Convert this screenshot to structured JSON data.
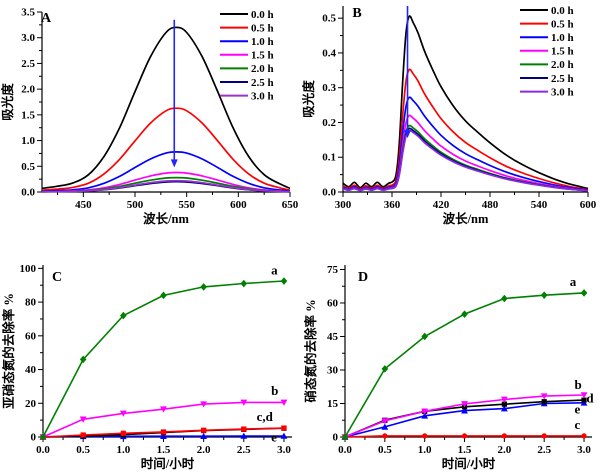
{
  "figure": {
    "background": "#ffffff"
  },
  "chart_data": [
    {
      "id": "A",
      "type": "line",
      "panel_label": "A",
      "xlabel": "波长/nm",
      "ylabel": "吸光度",
      "xlim": [
        410,
        650
      ],
      "ylim": [
        0,
        3.5
      ],
      "xticks": {
        "values": [
          450,
          500,
          550,
          600,
          650
        ],
        "labels": [
          "450",
          "500",
          "550",
          "600",
          "650"
        ],
        "minor_step": 25
      },
      "yticks": {
        "values": [
          0,
          0.5,
          1,
          1.5,
          2,
          2.5,
          3,
          3.5
        ],
        "labels": [
          "0.0",
          "0.5",
          "1.0",
          "1.5",
          "2.0",
          "2.5",
          "3.0",
          "3.5"
        ],
        "minor_step": 0.25
      },
      "legend": {
        "position": "top-right",
        "entries": [
          {
            "label": "0.0 h",
            "color": "#000000"
          },
          {
            "label": "0.5 h",
            "color": "#ff0000"
          },
          {
            "label": "1.0 h",
            "color": "#0000ff"
          },
          {
            "label": "1.5 h",
            "color": "#ff00ff"
          },
          {
            "label": "2.0 h",
            "color": "#008000"
          },
          {
            "label": "2.5 h",
            "color": "#000080"
          },
          {
            "label": "3.0 h",
            "color": "#9933cc"
          }
        ]
      },
      "profile": {
        "x": [
          410,
          425,
          440,
          455,
          470,
          485,
          500,
          515,
          530,
          540,
          550,
          565,
          580,
          595,
          610,
          625,
          640,
          650
        ],
        "y_normalized": [
          0.022,
          0.035,
          0.055,
          0.105,
          0.216,
          0.389,
          0.61,
          0.822,
          0.969,
          1.0,
          0.969,
          0.822,
          0.61,
          0.389,
          0.216,
          0.105,
          0.05,
          0.022
        ]
      },
      "series": [
        {
          "name": "0.0 h",
          "color": "#000000",
          "peak": 3.2
        },
        {
          "name": "0.5 h",
          "color": "#ff0000",
          "peak": 1.63
        },
        {
          "name": "1.0 h",
          "color": "#0000ff",
          "peak": 0.78
        },
        {
          "name": "1.5 h",
          "color": "#ff00ff",
          "peak": 0.38
        },
        {
          "name": "2.0 h",
          "color": "#008000",
          "peak": 0.28
        },
        {
          "name": "2.5 h",
          "color": "#000080",
          "peak": 0.2
        },
        {
          "name": "3.0 h",
          "color": "#9933cc",
          "peak": 0.22
        }
      ],
      "arrow": {
        "x": 538,
        "y_from": 3.35,
        "y_to": 0.48,
        "color": "#2424ff"
      }
    },
    {
      "id": "B",
      "type": "line",
      "panel_label": "B",
      "xlabel": "波长/nm",
      "ylabel": "吸光度",
      "xlim": [
        300,
        600
      ],
      "ylim": [
        0,
        0.535
      ],
      "xticks": {
        "values": [
          300,
          360,
          420,
          480,
          540,
          600
        ],
        "labels": [
          "300",
          "360",
          "420",
          "480",
          "540",
          "600"
        ],
        "minor_step": 30
      },
      "yticks": {
        "values": [
          0,
          0.1,
          0.2,
          0.3,
          0.4,
          0.5
        ],
        "labels": [
          "0.0",
          "0.1",
          "0.2",
          "0.3",
          "0.4",
          "0.5"
        ],
        "minor_step": 0.05
      },
      "legend": {
        "position": "top-right",
        "entries": [
          {
            "label": "0.0 h",
            "color": "#000000"
          },
          {
            "label": "0.5 h",
            "color": "#ff0000"
          },
          {
            "label": "1.0 h",
            "color": "#0000ff"
          },
          {
            "label": "1.5 h",
            "color": "#ff00ff"
          },
          {
            "label": "2.0 h",
            "color": "#008000"
          },
          {
            "label": "2.5 h",
            "color": "#000080"
          },
          {
            "label": "3.0 h",
            "color": "#8a2be2"
          }
        ]
      },
      "profile": {
        "x": [
          300,
          307,
          314,
          321,
          328,
          335,
          342,
          349,
          356,
          361,
          365,
          369,
          373,
          377,
          381,
          386,
          392,
          400,
          410,
          420,
          435,
          450,
          465,
          480,
          500,
          520,
          540,
          560,
          580,
          600
        ],
        "y_normalized": [
          0.05,
          0.03,
          0.055,
          0.025,
          0.05,
          0.03,
          0.055,
          0.03,
          0.05,
          0.06,
          0.1,
          0.28,
          0.62,
          0.9,
          1.0,
          0.965,
          0.905,
          0.8,
          0.695,
          0.6,
          0.49,
          0.405,
          0.34,
          0.28,
          0.21,
          0.155,
          0.11,
          0.072,
          0.042,
          0.02
        ]
      },
      "series": [
        {
          "name": "0.0 h",
          "color": "#000000",
          "peak": 0.505
        },
        {
          "name": "0.5 h",
          "color": "#ff0000",
          "peak": 0.352
        },
        {
          "name": "1.0 h",
          "color": "#0000ff",
          "peak": 0.272
        },
        {
          "name": "1.5 h",
          "color": "#ff00ff",
          "peak": 0.22
        },
        {
          "name": "2.0 h",
          "color": "#008000",
          "peak": 0.191
        },
        {
          "name": "2.5 h",
          "color": "#000080",
          "peak": 0.183
        },
        {
          "name": "3.0 h",
          "color": "#8a2be2",
          "peak": 0.177
        }
      ],
      "arrow": {
        "x": 379,
        "y_from": 0.535,
        "y_to": 0.155,
        "color": "#2424ff"
      }
    },
    {
      "id": "C",
      "type": "line",
      "panel_label": "C",
      "xlabel": "时间/小时",
      "ylabel": "亚硝态氮的去除率 %",
      "xlim": [
        0,
        3.1
      ],
      "ylim": [
        0,
        102
      ],
      "xticks": {
        "values": [
          0,
          0.5,
          1,
          1.5,
          2,
          2.5,
          3
        ],
        "labels": [
          "0.0",
          "0.5",
          "1.0",
          "1.5",
          "2.0",
          "2.5",
          "3.0"
        ],
        "minor_step": 0.25
      },
      "yticks": {
        "values": [
          0,
          20,
          40,
          60,
          80,
          100
        ],
        "labels": [
          "0",
          "20",
          "40",
          "60",
          "80",
          "100"
        ],
        "minor_step": 10
      },
      "x": [
        0,
        0.5,
        1,
        1.5,
        2,
        2.5,
        3
      ],
      "series": [
        {
          "name": "a",
          "color": "#008000",
          "marker": "diamond",
          "values": [
            0,
            46,
            72,
            84,
            89,
            91,
            92.5
          ]
        },
        {
          "name": "b",
          "color": "#ff00ff",
          "marker": "triangle-down",
          "values": [
            0,
            10.5,
            14,
            16.5,
            19.5,
            20.5,
            20.5
          ]
        },
        {
          "name": "c",
          "color": "#ff0000",
          "marker": "square",
          "values": [
            0,
            1.2,
            2.2,
            3.0,
            4.0,
            4.7,
            5.3
          ]
        },
        {
          "name": "d",
          "color": "#000000",
          "marker": "square",
          "values": [
            0,
            0.7,
            1.4,
            2.6,
            3.8,
            4.5,
            5.2
          ]
        },
        {
          "name": "e",
          "color": "#0000ff",
          "marker": "triangle-up",
          "values": [
            0,
            0.4,
            0.4,
            0.5,
            0.5,
            0.6,
            0.6
          ]
        }
      ],
      "annotations": [
        {
          "text": "a",
          "x": 2.84,
          "y": 96.5
        },
        {
          "text": "b",
          "x": 2.84,
          "y": 25
        },
        {
          "text": "c,d",
          "x": 2.66,
          "y": 9.5
        },
        {
          "text": "e",
          "x": 2.84,
          "y": -2.8
        }
      ]
    },
    {
      "id": "D",
      "type": "line",
      "panel_label": "D",
      "xlabel": "时间/小时",
      "ylabel": "硝态氮的去除率 %",
      "xlim": [
        0,
        3.1
      ],
      "ylim": [
        0,
        77
      ],
      "xticks": {
        "values": [
          0,
          0.5,
          1,
          1.5,
          2,
          2.5,
          3
        ],
        "labels": [
          "0.0",
          "0.5",
          "1.0",
          "1.5",
          "2.0",
          "2.5",
          "3.0"
        ],
        "minor_step": 0.25
      },
      "yticks": {
        "values": [
          0,
          15,
          30,
          45,
          60,
          75
        ],
        "labels": [
          "0",
          "15",
          "30",
          "45",
          "60",
          "75"
        ],
        "minor_step": 7.5
      },
      "x": [
        0,
        0.5,
        1,
        1.5,
        2,
        2.5,
        3
      ],
      "series": [
        {
          "name": "a",
          "color": "#008000",
          "marker": "diamond",
          "values": [
            0,
            30.5,
            45,
            55,
            62,
            63.5,
            64.5
          ]
        },
        {
          "name": "b",
          "color": "#ff00ff",
          "marker": "triangle-down",
          "values": [
            0,
            7.2,
            11.5,
            14.8,
            16.8,
            18.3,
            18.8
          ]
        },
        {
          "name": "c",
          "color": "#ff0000",
          "marker": "circle",
          "values": [
            0,
            0.5,
            0.5,
            0.5,
            0.5,
            0.5,
            0.5
          ]
        },
        {
          "name": "d",
          "color": "#000000",
          "marker": "square",
          "values": [
            0,
            7.5,
            11.5,
            13.5,
            14.7,
            15.8,
            16.5
          ]
        },
        {
          "name": "e",
          "color": "#0000ff",
          "marker": "triangle-up",
          "values": [
            0,
            4.5,
            9.5,
            11.8,
            12.7,
            15,
            15.3
          ]
        }
      ],
      "annotations": [
        {
          "text": "a",
          "x": 2.82,
          "y": 67.5
        },
        {
          "text": "b",
          "x": 2.88,
          "y": 21.5
        },
        {
          "text": "d",
          "x": 3.03,
          "y": 15.5
        },
        {
          "text": "e",
          "x": 2.88,
          "y": 10.5
        },
        {
          "text": "c",
          "x": 2.88,
          "y": 3.5
        }
      ]
    }
  ]
}
